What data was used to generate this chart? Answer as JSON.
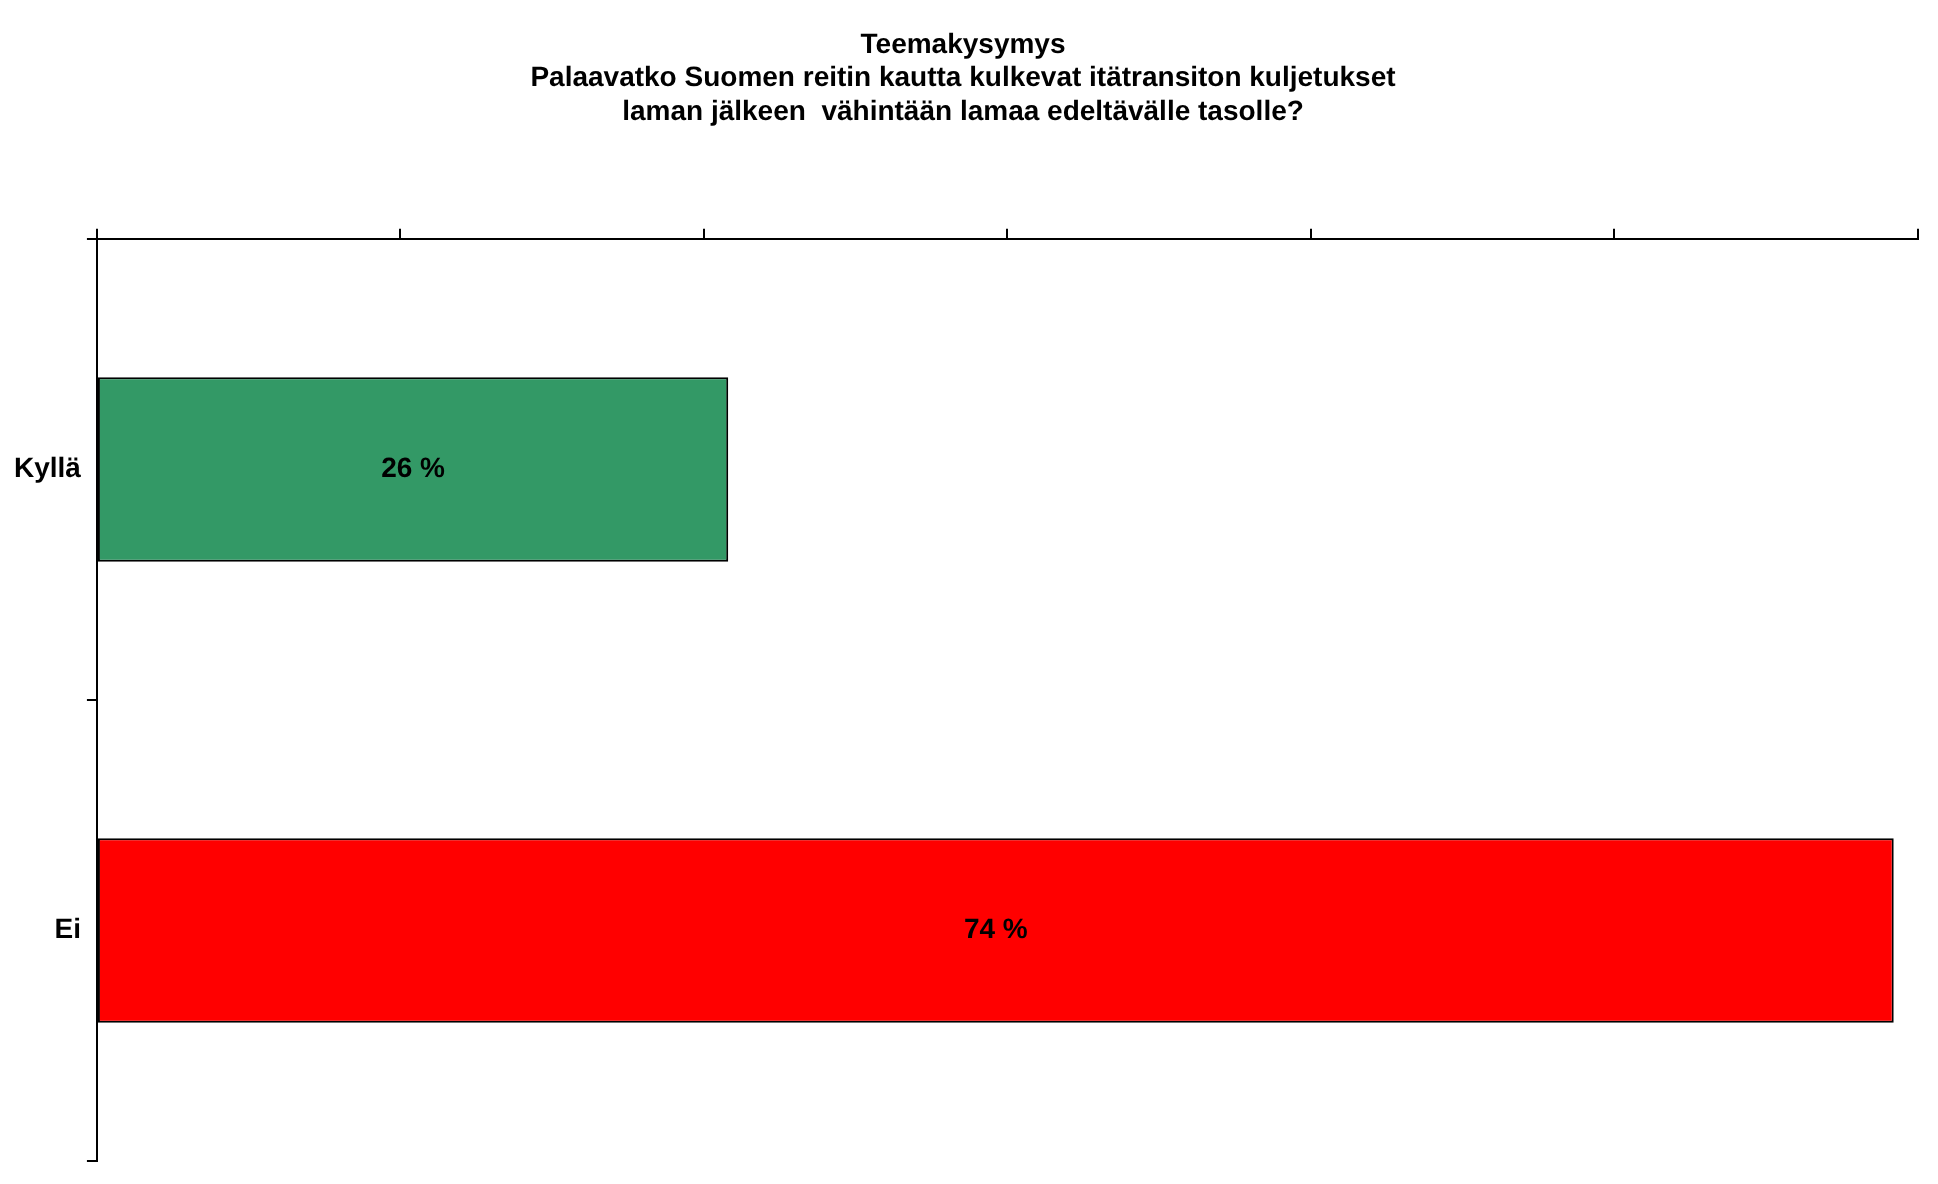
{
  "chart_data": {
    "type": "bar",
    "orientation": "horizontal",
    "title": "Teemakysymys\nPalaavatko Suomen reitin kautta kulkevat itätransiton kuljetukset\nlaman jälkeen  vähintään lamaa edeltävälle tasolle?",
    "categories": [
      "Kyllä",
      "Ei"
    ],
    "values": [
      26,
      74
    ],
    "colors": [
      "#339966",
      "#ff0000"
    ],
    "value_labels": [
      "26 %",
      "74 %"
    ],
    "xlim": [
      0,
      75
    ],
    "xticks": [
      {
        "value": 0,
        "label": null
      },
      {
        "value": 12.5,
        "label": null
      },
      {
        "value": 25,
        "label": null
      },
      {
        "value": 37.5,
        "label": null
      },
      {
        "value": 50,
        "label": null
      },
      {
        "value": 62.5,
        "label": null
      },
      {
        "value": 75,
        "label": null
      }
    ],
    "tick_labels": "y",
    "grid": false,
    "legend": false
  }
}
